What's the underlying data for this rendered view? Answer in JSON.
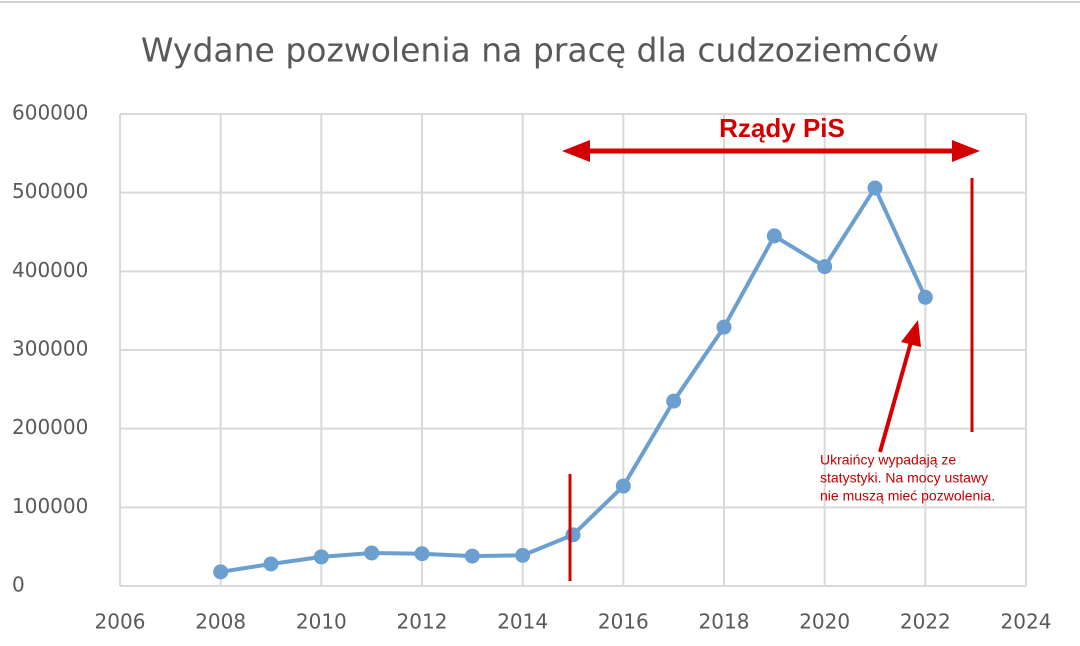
{
  "chart_data": {
    "type": "line",
    "title": "Wydane pozwolenia na pracę dla cudzoziemców",
    "x": [
      2008,
      2009,
      2010,
      2011,
      2012,
      2013,
      2014,
      2015,
      2016,
      2017,
      2018,
      2019,
      2020,
      2021,
      2022
    ],
    "series": [
      {
        "name": "Wydane pozwolenia",
        "color": "#6b9fcf",
        "values": [
          18000,
          28000,
          37000,
          42000,
          41000,
          38000,
          39000,
          65000,
          127000,
          235000,
          329000,
          445000,
          406000,
          506000,
          367000
        ]
      }
    ],
    "xlim": [
      2006,
      2024
    ],
    "xticks": [
      2006,
      2008,
      2010,
      2012,
      2014,
      2016,
      2018,
      2020,
      2022,
      2024
    ],
    "ylim": [
      0,
      600000
    ],
    "yticks": [
      0,
      100000,
      200000,
      300000,
      400000,
      500000,
      600000
    ],
    "grid": true,
    "annotations": [
      "Rządy PiS",
      "Ukraińcy wypadają ze",
      "statystyki. Na mocy ustawy",
      "nie muszą mieć pozwolenia."
    ]
  }
}
